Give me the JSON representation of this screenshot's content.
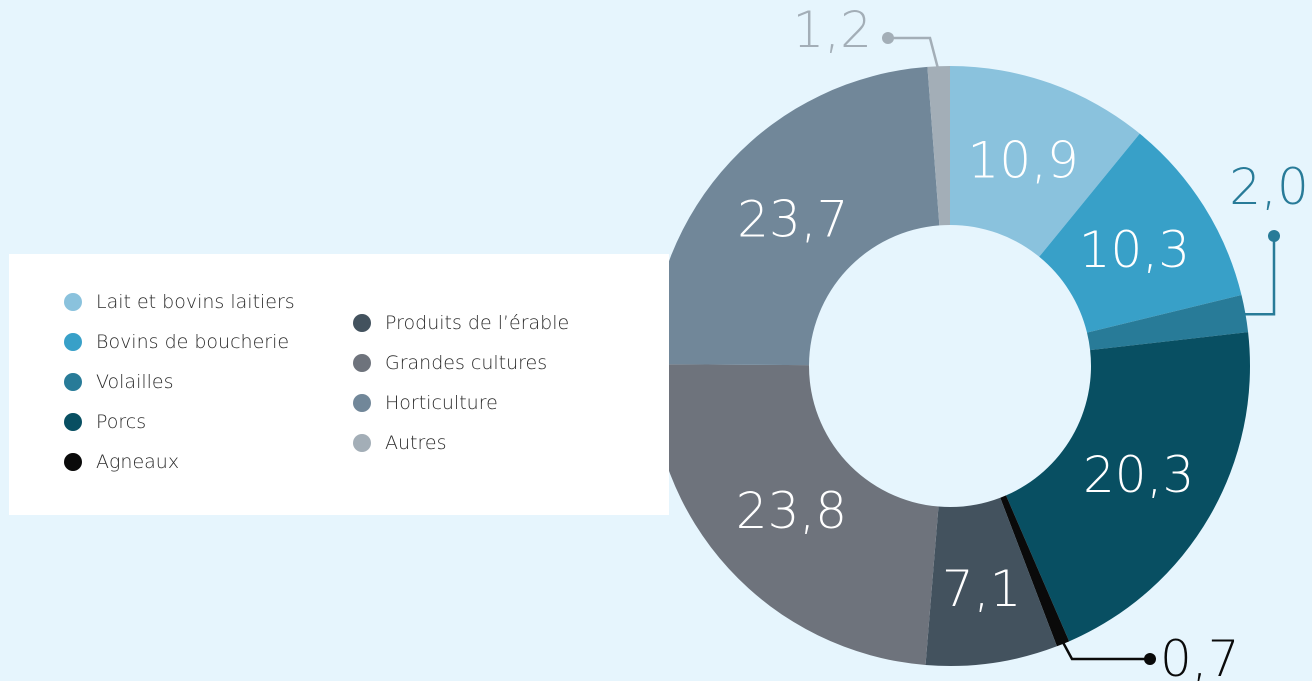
{
  "chart_data": {
    "type": "pie",
    "donut": true,
    "title": "",
    "legend_position": "left",
    "categories": [
      "Lait et bovins laitiers",
      "Bovins de boucherie",
      "Volailles",
      "Porcs",
      "Agneaux",
      "Produits de l’érable",
      "Grandes cultures",
      "Horticulture",
      "Autres"
    ],
    "values": [
      10.9,
      10.3,
      2.0,
      20.3,
      0.7,
      7.1,
      23.8,
      23.7,
      1.2
    ],
    "labels": [
      "10,9",
      "10,3",
      "2,0",
      "20,3",
      "0,7",
      "7,1",
      "23,8",
      "23,7",
      "1,2"
    ],
    "colors": [
      "#8ac2dd",
      "#38a0c8",
      "#287b98",
      "#084f62",
      "#0a0a0a",
      "#43525e",
      "#6e737c",
      "#718799",
      "#a3aeb7"
    ]
  }
}
